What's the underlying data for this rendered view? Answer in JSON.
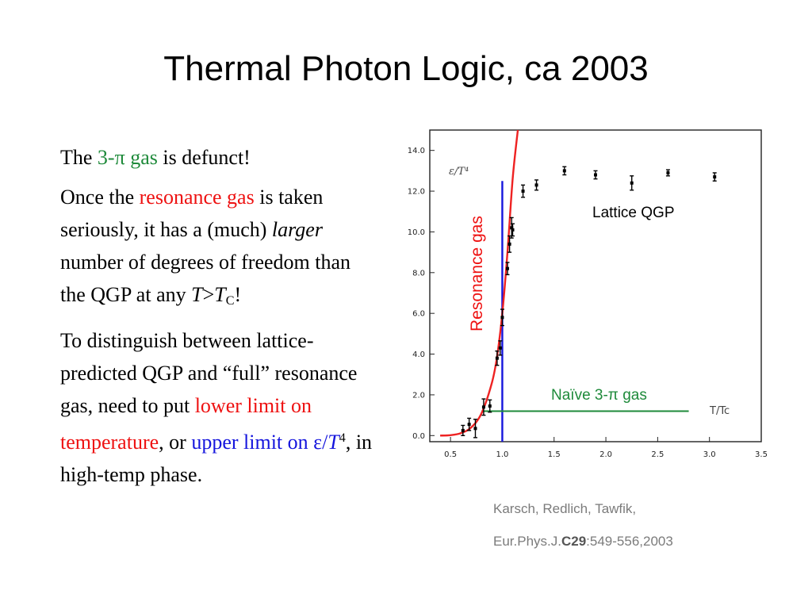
{
  "slide": {
    "title": "Thermal Photon Logic, ca 2003",
    "p1": {
      "pre": "The ",
      "highlight": "3-π gas",
      "post": " is defunct!"
    },
    "p2": {
      "pre": "Once the ",
      "highlight": "resonance gas",
      "mid": " is taken seriously, it has a (much) ",
      "italic": "larger",
      "post": " number of degrees of freedom than the QGP at any ",
      "var_t": "T",
      "gt": ">",
      "var_tc": "T",
      "sub_c": "C",
      "end": "!"
    },
    "p3": {
      "pre": "To distinguish between lattice-predicted QGP and “full” resonance gas, need to put ",
      "red_text": "lower limit on temperature",
      "mid": ", or ",
      "blue_text": "upper limit on ε/",
      "blue_t": "T",
      "blue_sup": "4",
      "post": ", in high-temp phase."
    },
    "citation": {
      "line1": "Karsch, Redlich, Tawfik,",
      "line2_pre": "Eur.Phys.J.",
      "line2_bold": "C29",
      "line2_post": ":549-556,2003"
    }
  },
  "chart_data": {
    "type": "scatter",
    "xlabel": "T/Tc",
    "ylabel": "ε/T⁴",
    "xlim": [
      0.3,
      3.5
    ],
    "ylim": [
      -0.3,
      15.0
    ],
    "x_ticks": [
      "0.5",
      "1.0",
      "1.5",
      "2.0",
      "2.5",
      "3.0",
      "3.5"
    ],
    "y_ticks": [
      "0.0",
      "2.0",
      "4.0",
      "6.0",
      "8.0",
      "10.0",
      "12.0",
      "14.0"
    ],
    "annotations": {
      "lattice": "Lattice QGP",
      "resonance": "Resonance gas",
      "naive": "Naïve 3-π gas"
    },
    "colors": {
      "resonance": "#ee2222",
      "tc_line": "#1515dd",
      "naive": "#1e8a3a"
    },
    "lattice_points": [
      {
        "x": 0.62,
        "y": 0.25,
        "err": 0.25
      },
      {
        "x": 0.68,
        "y": 0.55,
        "err": 0.3
      },
      {
        "x": 0.74,
        "y": 0.35,
        "err": 0.45
      },
      {
        "x": 0.82,
        "y": 1.4,
        "err": 0.4
      },
      {
        "x": 0.88,
        "y": 1.45,
        "err": 0.3
      },
      {
        "x": 0.95,
        "y": 3.8,
        "err": 0.35
      },
      {
        "x": 0.98,
        "y": 4.3,
        "err": 0.35
      },
      {
        "x": 1.0,
        "y": 5.8,
        "err": 0.4
      },
      {
        "x": 1.05,
        "y": 8.2,
        "err": 0.3
      },
      {
        "x": 1.07,
        "y": 9.4,
        "err": 0.4
      },
      {
        "x": 1.09,
        "y": 10.2,
        "err": 0.5
      },
      {
        "x": 1.1,
        "y": 10.1,
        "err": 0.3
      },
      {
        "x": 1.2,
        "y": 12.0,
        "err": 0.3
      },
      {
        "x": 1.33,
        "y": 12.3,
        "err": 0.25
      },
      {
        "x": 1.6,
        "y": 13.0,
        "err": 0.2
      },
      {
        "x": 1.9,
        "y": 12.8,
        "err": 0.2
      },
      {
        "x": 2.25,
        "y": 12.4,
        "err": 0.35
      },
      {
        "x": 2.6,
        "y": 12.9,
        "err": 0.15
      },
      {
        "x": 3.05,
        "y": 12.7,
        "err": 0.2
      }
    ],
    "resonance_curve": [
      {
        "x": 0.4,
        "y": 0.0
      },
      {
        "x": 0.5,
        "y": 0.02
      },
      {
        "x": 0.6,
        "y": 0.12
      },
      {
        "x": 0.7,
        "y": 0.4
      },
      {
        "x": 0.8,
        "y": 1.1
      },
      {
        "x": 0.9,
        "y": 2.6
      },
      {
        "x": 0.95,
        "y": 3.9
      },
      {
        "x": 1.0,
        "y": 6.0
      },
      {
        "x": 1.05,
        "y": 9.0
      },
      {
        "x": 1.1,
        "y": 12.6
      },
      {
        "x": 1.15,
        "y": 15.0
      }
    ],
    "tc_line": {
      "x": 1.0,
      "y_from": -0.3,
      "y_to": 12.5
    },
    "naive_line": {
      "x_from": 0.8,
      "x_to": 2.8,
      "y": 1.2
    }
  }
}
